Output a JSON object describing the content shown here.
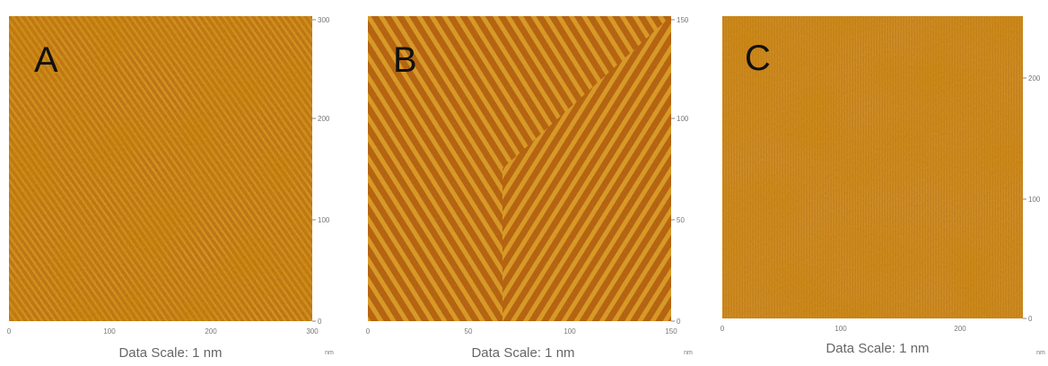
{
  "panels": [
    {
      "label": "A",
      "yticks": [
        300,
        200,
        100,
        0
      ],
      "xticks": [
        0,
        100,
        200,
        300
      ],
      "unit": "nm",
      "caption": "Data Scale:  1 nm"
    },
    {
      "label": "B",
      "yticks": [
        150,
        100,
        50,
        0
      ],
      "xticks": [
        0,
        50,
        100,
        150
      ],
      "unit": "nm",
      "caption": "Data Scale:  1 nm"
    },
    {
      "label": "C",
      "yticks": [
        200,
        100,
        0
      ],
      "xticks": [
        0,
        100,
        200
      ],
      "unit": "nm",
      "caption": "Data Scale:  1 nm"
    }
  ]
}
